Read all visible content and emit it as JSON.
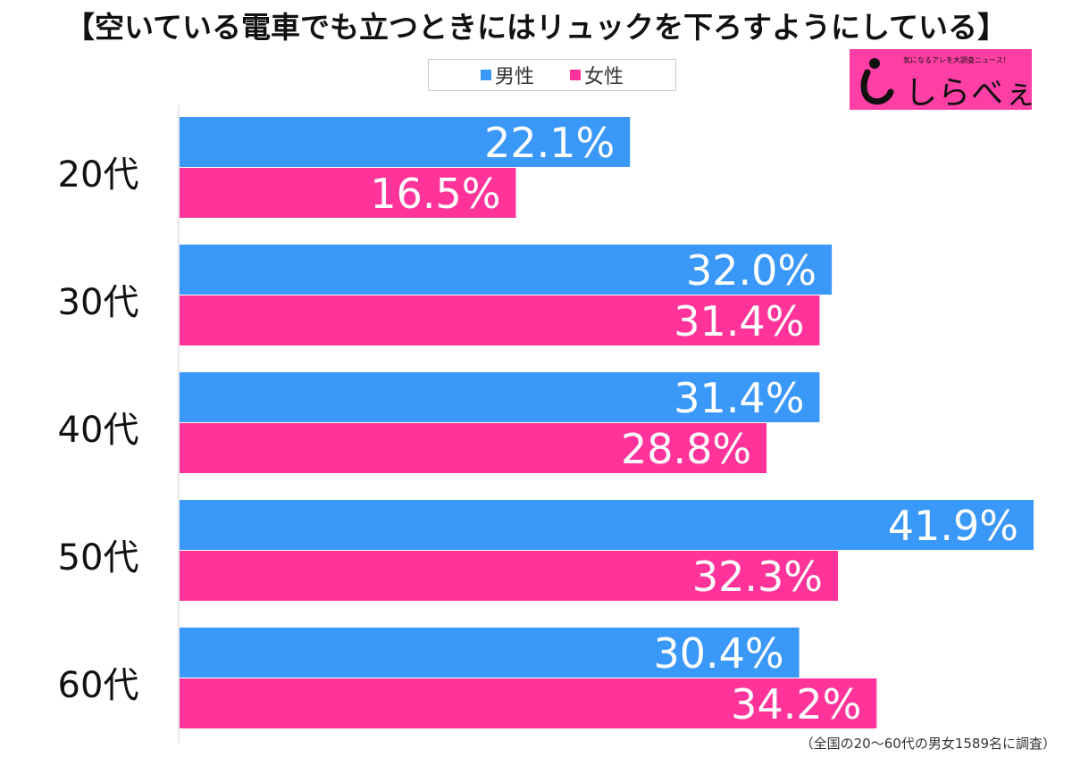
{
  "chart_data": {
    "type": "bar",
    "orientation": "horizontal",
    "title": "【空いている電車でも立つときにはリュックを下ろすようにしている】",
    "categories": [
      "20代",
      "30代",
      "40代",
      "50代",
      "60代"
    ],
    "series": [
      {
        "name": "男性",
        "color": "#3a98f8",
        "values": [
          22.1,
          32.0,
          31.4,
          41.9,
          30.4
        ]
      },
      {
        "name": "女性",
        "color": "#ff3399",
        "values": [
          16.5,
          31.4,
          28.8,
          32.3,
          34.2
        ]
      }
    ],
    "value_suffix": "%",
    "xlim": [
      0,
      41.9
    ],
    "grid": false,
    "legend": "top-center",
    "note": "（全国の20〜60代の男女1589名に調査）"
  },
  "logo": {
    "tagline": "気になるアレを大調査ニュース！",
    "word": "しらべぇ"
  }
}
